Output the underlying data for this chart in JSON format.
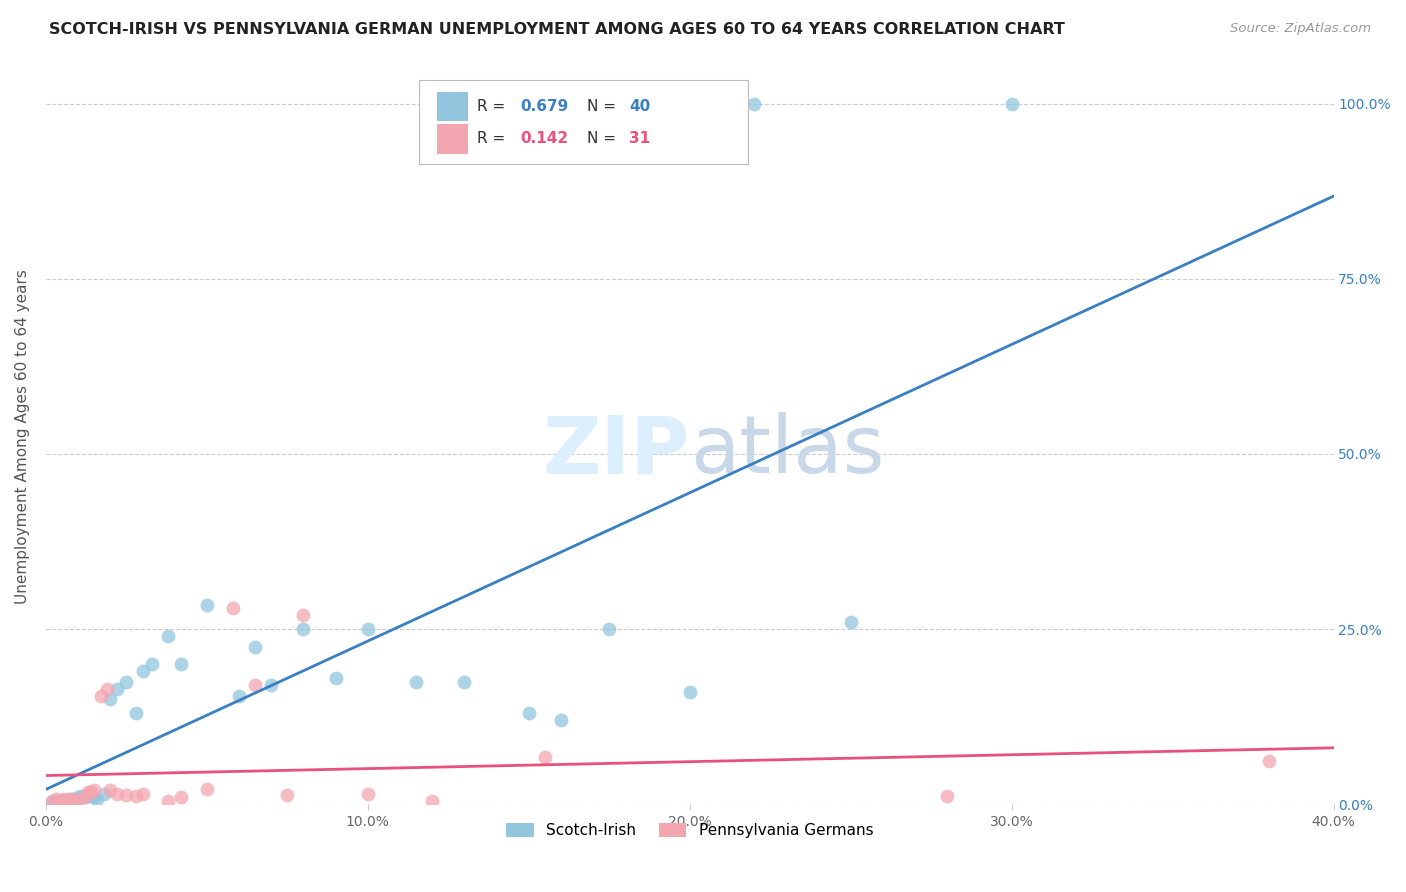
{
  "title": "SCOTCH-IRISH VS PENNSYLVANIA GERMAN UNEMPLOYMENT AMONG AGES 60 TO 64 YEARS CORRELATION CHART",
  "source": "Source: ZipAtlas.com",
  "ylabel": "Unemployment Among Ages 60 to 64 years",
  "xlim": [
    0.0,
    0.4
  ],
  "ylim": [
    0.0,
    1.05
  ],
  "ytick_vals": [
    0.0,
    0.25,
    0.5,
    0.75,
    1.0
  ],
  "ytick_labels": [
    "0.0%",
    "25.0%",
    "50.0%",
    "75.0%",
    "100.0%"
  ],
  "xtick_vals": [
    0.0,
    0.1,
    0.2,
    0.3,
    0.4
  ],
  "xtick_labels": [
    "0.0%",
    "10.0%",
    "20.0%",
    "30.0%",
    "40.0%"
  ],
  "scotch_irish_R": "0.679",
  "scotch_irish_N": "40",
  "penn_german_R": "0.142",
  "penn_german_N": "31",
  "scotch_irish_color": "#92c5de",
  "penn_german_color": "#f4a6b0",
  "scotch_irish_line_color": "#3a7fc1",
  "penn_german_line_color": "#e8517a",
  "legend_box_color": "#aaaaaa",
  "si_R_color": "#3a7fc1",
  "pg_R_color": "#e8517a",
  "right_tick_color": "#3a7fc1",
  "watermark_color": "#ddeeff",
  "scotch_irish_x": [
    0.002,
    0.003,
    0.004,
    0.005,
    0.006,
    0.007,
    0.008,
    0.009,
    0.01,
    0.011,
    0.012,
    0.013,
    0.014,
    0.015,
    0.016,
    0.018,
    0.02,
    0.022,
    0.025,
    0.028,
    0.03,
    0.033,
    0.038,
    0.042,
    0.05,
    0.06,
    0.065,
    0.07,
    0.08,
    0.09,
    0.1,
    0.115,
    0.13,
    0.15,
    0.16,
    0.175,
    0.2,
    0.22,
    0.25,
    0.3
  ],
  "scotch_irish_y": [
    0.003,
    0.005,
    0.004,
    0.006,
    0.005,
    0.007,
    0.008,
    0.006,
    0.01,
    0.012,
    0.01,
    0.013,
    0.012,
    0.01,
    0.008,
    0.015,
    0.15,
    0.165,
    0.175,
    0.13,
    0.19,
    0.2,
    0.24,
    0.2,
    0.285,
    0.155,
    0.225,
    0.17,
    0.25,
    0.18,
    0.25,
    0.175,
    0.175,
    0.13,
    0.12,
    0.25,
    0.16,
    1.0,
    0.26,
    1.0
  ],
  "penn_german_x": [
    0.002,
    0.003,
    0.005,
    0.006,
    0.007,
    0.008,
    0.009,
    0.01,
    0.012,
    0.013,
    0.014,
    0.015,
    0.017,
    0.019,
    0.02,
    0.022,
    0.025,
    0.028,
    0.03,
    0.038,
    0.042,
    0.05,
    0.058,
    0.065,
    0.075,
    0.08,
    0.1,
    0.12,
    0.155,
    0.28,
    0.38
  ],
  "penn_german_y": [
    0.005,
    0.007,
    0.006,
    0.007,
    0.006,
    0.008,
    0.005,
    0.006,
    0.01,
    0.018,
    0.017,
    0.02,
    0.155,
    0.165,
    0.02,
    0.015,
    0.013,
    0.012,
    0.015,
    0.005,
    0.01,
    0.022,
    0.28,
    0.17,
    0.013,
    0.27,
    0.015,
    0.005,
    0.068,
    0.012,
    0.062
  ]
}
